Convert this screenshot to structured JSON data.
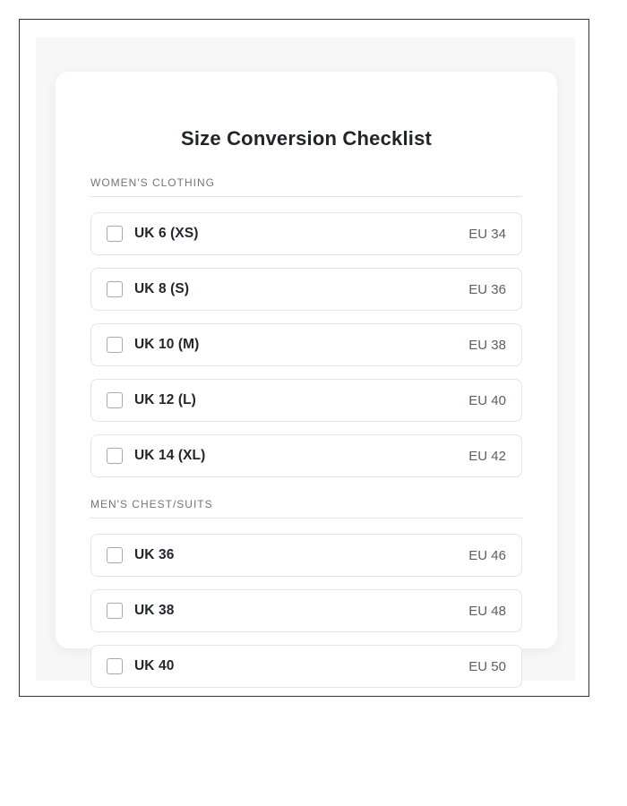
{
  "page": {
    "title": "Size Conversion Checklist"
  },
  "colors": {
    "frame_border": "#333333",
    "panel_background": "#f7f7f8",
    "card_background": "#ffffff",
    "row_border": "#e4e4e7",
    "title_text": "#212529",
    "section_header_text": "#6e7680",
    "size_label_text": "#23262d",
    "eu_value_text": "#596066",
    "checkbox_border": "#a6abb2"
  },
  "sections": [
    {
      "label": "WOMEN'S CLOTHING",
      "items": [
        {
          "uk": "UK 6 (XS)",
          "eu": "EU 34",
          "checked": false
        },
        {
          "uk": "UK 8 (S)",
          "eu": "EU 36",
          "checked": false
        },
        {
          "uk": "UK 10 (M)",
          "eu": "EU 38",
          "checked": false
        },
        {
          "uk": "UK 12 (L)",
          "eu": "EU 40",
          "checked": false
        },
        {
          "uk": "UK 14 (XL)",
          "eu": "EU 42",
          "checked": false
        }
      ]
    },
    {
      "label": "MEN'S CHEST/SUITS",
      "items": [
        {
          "uk": "UK 36",
          "eu": "EU 46",
          "checked": false
        },
        {
          "uk": "UK 38",
          "eu": "EU 48",
          "checked": false
        },
        {
          "uk": "UK 40",
          "eu": "EU 50",
          "checked": false
        }
      ]
    }
  ]
}
